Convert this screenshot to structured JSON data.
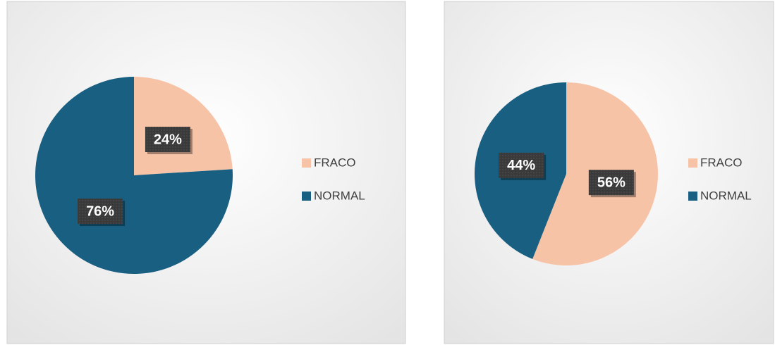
{
  "chart_data": [
    {
      "type": "pie",
      "categories": [
        "FRACO",
        "NORMAL"
      ],
      "values": [
        24,
        76
      ],
      "value_labels": [
        "24%",
        "76%"
      ],
      "colors": [
        "#f7c3a7",
        "#185f82"
      ],
      "legend": "right"
    },
    {
      "type": "pie",
      "categories": [
        "FRACO",
        "NORMAL"
      ],
      "values": [
        56,
        44
      ],
      "value_labels": [
        "56%",
        "44%"
      ],
      "colors": [
        "#f7c3a7",
        "#185f82"
      ],
      "legend": "right"
    }
  ]
}
